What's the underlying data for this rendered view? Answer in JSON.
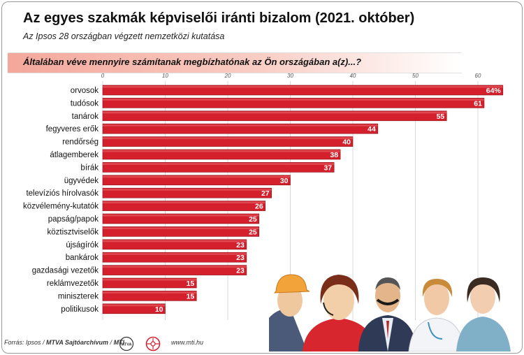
{
  "header": {
    "title": "Az egyes szakmák képviselői iránti bizalom (2021. október)",
    "subtitle": "Az Ipsos 28 országban végzett nemzetközi kutatása",
    "question": "Általában véve mennyire számítanak megbízhatónak az Ön országában a(z)...?"
  },
  "footer": {
    "source_prefix": "Forrás: Ipsos / ",
    "source_archive": "MTVA Sajtóarchívum",
    "source_sep": " / ",
    "source_mti": "MTI",
    "url": "www.mti.hu",
    "logo1_text": "MTVA"
  },
  "colors": {
    "bar": "#d4202c",
    "bar_highlight": "#e96a6f",
    "band": "#f4a79b",
    "label_text": "#ffffff"
  },
  "chart_data": {
    "type": "bar",
    "orientation": "horizontal",
    "categories": [
      "orvosok",
      "tudósok",
      "tanárok",
      "fegyveres erők",
      "rendőrség",
      "átlagemberek",
      "bírák",
      "ügyvédek",
      "televíziós hírolvasók",
      "közvélemény-kutatók",
      "papság/papok",
      "köztisztviselők",
      "újságírók",
      "bankárok",
      "gazdasági vezetők",
      "reklámvezetők",
      "miniszterek",
      "politikusok"
    ],
    "values": [
      64,
      61,
      55,
      44,
      40,
      38,
      37,
      30,
      27,
      26,
      25,
      25,
      23,
      23,
      23,
      15,
      15,
      10
    ],
    "value_labels": [
      "64%",
      "61",
      "55",
      "44",
      "40",
      "38",
      "37",
      "30",
      "27",
      "26",
      "25",
      "25",
      "23",
      "23",
      "23",
      "15",
      "15",
      "10"
    ],
    "xlim": [
      0,
      65
    ],
    "xticks": [
      0,
      10,
      20,
      30,
      40,
      50,
      60
    ],
    "grid": true,
    "legend": "none"
  }
}
